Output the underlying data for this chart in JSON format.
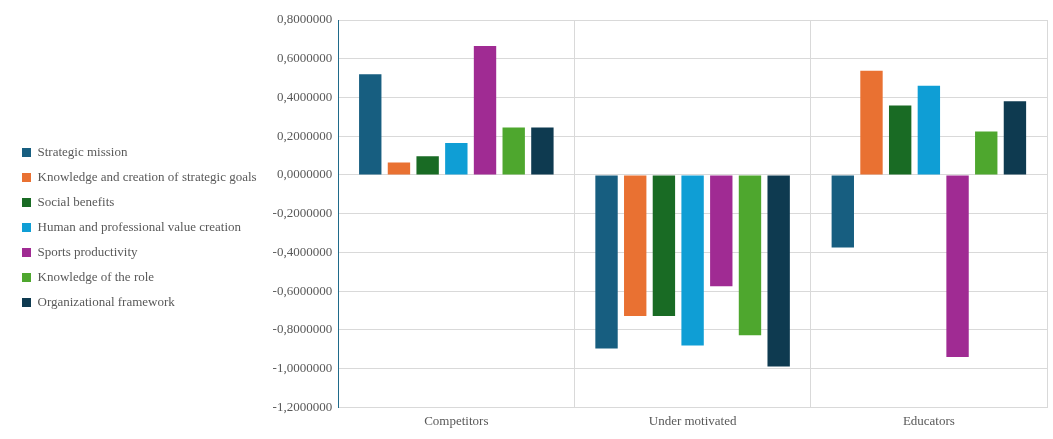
{
  "chart_data": {
    "type": "bar",
    "categories": [
      "Competitors",
      "Under motivated",
      "Educators"
    ],
    "series": [
      {
        "name": "Strategic mission",
        "color": "#175e80",
        "values": [
          0.52,
          -0.896,
          -0.374
        ]
      },
      {
        "name": "Knowledge and creation of strategic goals",
        "color": "#e97132",
        "values": [
          0.064,
          -0.728,
          0.538
        ]
      },
      {
        "name": "Social benefits",
        "color": "#196b24",
        "values": [
          0.097,
          -0.728,
          0.359
        ]
      },
      {
        "name": "Human and professional value creation",
        "color": "#0f9ed5",
        "values": [
          0.165,
          -0.88,
          0.461
        ]
      },
      {
        "name": "Sports productivity",
        "color": "#a02b93",
        "values": [
          0.666,
          -0.575,
          -0.94
        ]
      },
      {
        "name": "Knowledge of the role",
        "color": "#4ea72e",
        "values": [
          0.245,
          -0.827,
          0.225
        ]
      },
      {
        "name": "Organizational framework",
        "color": "#0e3a50",
        "values": [
          0.245,
          -0.989,
          0.381
        ]
      }
    ],
    "ylim": [
      -1.2,
      0.8
    ],
    "yticks": [
      {
        "value": 0.8,
        "label": "0,8000000"
      },
      {
        "value": 0.6,
        "label": "0,6000000"
      },
      {
        "value": 0.4,
        "label": "0,4000000"
      },
      {
        "value": 0.2,
        "label": "0,2000000"
      },
      {
        "value": 0,
        "label": "0,0000000"
      },
      {
        "value": -0.2,
        "label": "-0,2000000"
      },
      {
        "value": -0.4,
        "label": "-0,4000000"
      },
      {
        "value": -0.6,
        "label": "-0,6000000"
      },
      {
        "value": -0.8,
        "label": "-0,8000000"
      },
      {
        "value": -1,
        "label": "-1,0000000"
      },
      {
        "value": -1.2,
        "label": "-1,2000000"
      }
    ],
    "grid": true,
    "legend": "left"
  }
}
